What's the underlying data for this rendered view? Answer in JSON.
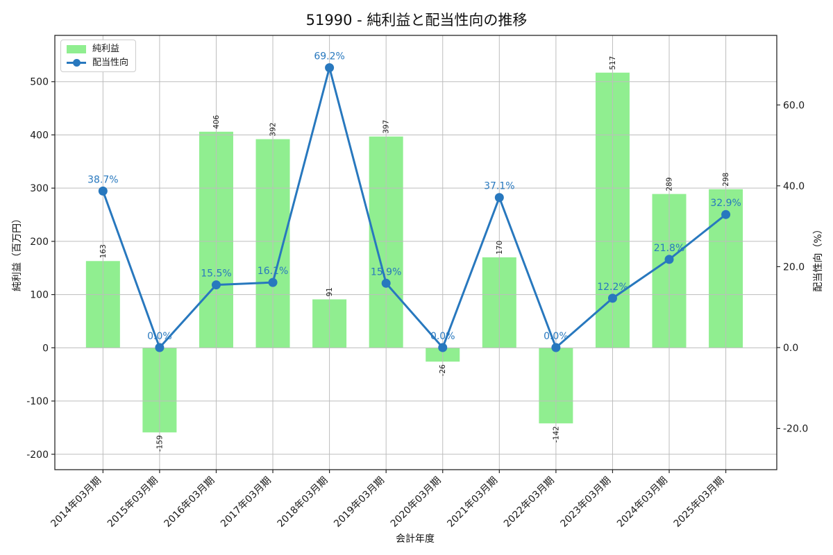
{
  "title": "51990 - 純利益と配当性向の推移",
  "legend": {
    "position": "upper left",
    "items": [
      {
        "label": "純利益",
        "type": "bar"
      },
      {
        "label": "配当性向",
        "type": "line"
      }
    ]
  },
  "chart_data": {
    "type": "bar+line dual-axis",
    "title": "51990 - 純利益と配当性向の推移",
    "xlabel": "会計年度",
    "ylabel_left": "純利益（百万円）",
    "ylabel_right": "配当性向（%）",
    "categories": [
      "2014年03月期",
      "2015年03月期",
      "2016年03月期",
      "2017年03月期",
      "2018年03月期",
      "2019年03月期",
      "2020年03月期",
      "2021年03月期",
      "2022年03月期",
      "2023年03月期",
      "2024年03月期",
      "2025年03月期"
    ],
    "series": [
      {
        "name": "純利益",
        "type": "bar",
        "axis": "left",
        "color": "#90EE90",
        "values": [
          163,
          -159,
          406,
          392,
          91,
          397,
          -26,
          170,
          -142,
          517,
          289,
          298
        ],
        "value_labels": [
          "163",
          "-159",
          "406",
          "392",
          "91",
          "397",
          "-26",
          "170",
          "-142",
          "517",
          "289",
          "298"
        ]
      },
      {
        "name": "配当性向",
        "type": "line",
        "axis": "right",
        "color": "#2878BE",
        "values": [
          38.7,
          0.0,
          15.5,
          16.1,
          69.2,
          15.9,
          0.0,
          37.1,
          0.0,
          12.2,
          21.8,
          32.9
        ],
        "value_labels": [
          "38.7%",
          "0.0%",
          "15.5%",
          "16.1%",
          "69.2%",
          "15.9%",
          "0.0%",
          "37.1%",
          "0.0%",
          "12.2%",
          "21.8%",
          "32.9%"
        ]
      }
    ],
    "left_ticks": [
      -200,
      -100,
      0,
      100,
      200,
      300,
      400,
      500
    ],
    "right_ticks": [
      {
        "v": -20,
        "label": "-20.0"
      },
      {
        "v": 0,
        "label": "0.0"
      },
      {
        "v": 20,
        "label": "20.0"
      },
      {
        "v": 40,
        "label": "40.0"
      },
      {
        "v": 60,
        "label": "60.0"
      }
    ],
    "ylim_left": [
      -229,
      587
    ],
    "ylim_right": [
      -30.2,
      77.2
    ],
    "xlim": [
      -0.85,
      11.9
    ],
    "grid": true,
    "legend_position": "upper left"
  },
  "colors": {
    "bar_fill": "#90EE90",
    "line": "#2878BE",
    "annotation_blue": "#2878BE",
    "grid": "#BDBDBD",
    "spine": "#262626",
    "text": "#1A1A1A"
  }
}
